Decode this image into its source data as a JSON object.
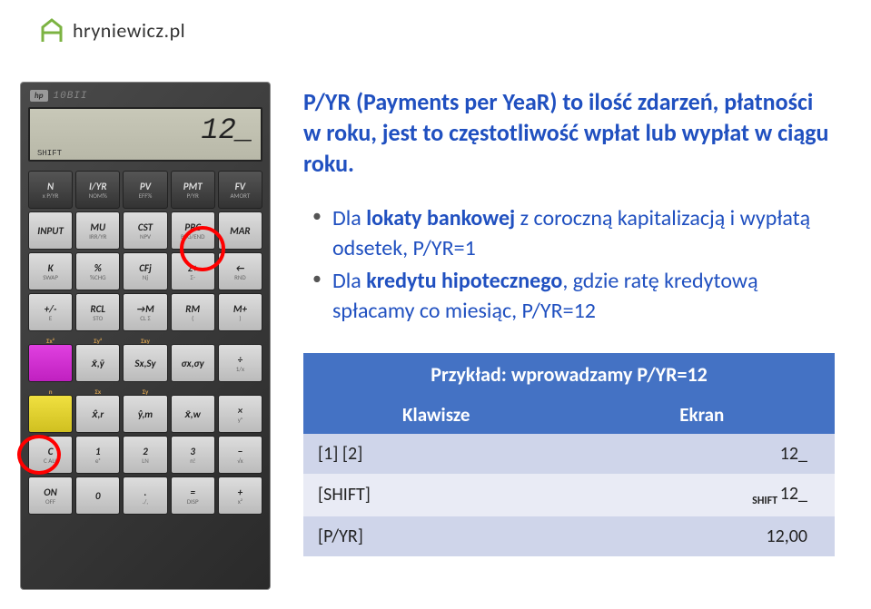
{
  "logo": {
    "text": "hryniewicz.pl",
    "icon_color": "#7cb342"
  },
  "calculator": {
    "brand_badge": "hp",
    "model": "10BII",
    "lcd_value": "12_",
    "lcd_indicator": "SHIFT",
    "rows": [
      [
        {
          "main": "N",
          "sub": "x P/YR",
          "cls": "btn-dark"
        },
        {
          "main": "I/YR",
          "sub": "NOM%",
          "cls": "btn-dark"
        },
        {
          "main": "PV",
          "sub": "EFF%",
          "cls": "btn-dark"
        },
        {
          "main": "PMT",
          "sub": "P/YR",
          "cls": "btn-dark"
        },
        {
          "main": "FV",
          "sub": "AMORT",
          "cls": "btn-dark"
        }
      ],
      [
        {
          "main": "INPUT",
          "sub": "",
          "cls": "btn-light"
        },
        {
          "main": "MU",
          "sub": "IRR/YR",
          "cls": "btn-light"
        },
        {
          "main": "CST",
          "sub": "NPV",
          "cls": "btn-light"
        },
        {
          "main": "PRC",
          "sub": "BEG/END",
          "cls": "btn-light"
        },
        {
          "main": "MAR",
          "sub": "",
          "cls": "btn-light"
        }
      ],
      [
        {
          "main": "K",
          "sub": "SWAP",
          "cls": "btn-light"
        },
        {
          "main": "%",
          "sub": "%CHG",
          "cls": "btn-light"
        },
        {
          "main": "CFj",
          "sub": "Nj",
          "cls": "btn-light"
        },
        {
          "main": "Σ+",
          "sub": "Σ-",
          "cls": "btn-light"
        },
        {
          "main": "←",
          "sub": "RND",
          "cls": "btn-light"
        }
      ],
      [
        {
          "main": "+/-",
          "sub": "E",
          "cls": "btn-light"
        },
        {
          "main": "RCL",
          "sub": "STO",
          "cls": "btn-light"
        },
        {
          "main": "→M",
          "sub": "CL Σ",
          "cls": "btn-light"
        },
        {
          "main": "RM",
          "sub": "(",
          "cls": "btn-light"
        },
        {
          "main": "M+",
          "sub": ")",
          "cls": "btn-light"
        }
      ],
      [
        {
          "main": "",
          "sub": "",
          "cls": "btn-magenta",
          "top": "Σx²"
        },
        {
          "main": "x̄,ȳ",
          "sub": "",
          "cls": "btn-light",
          "top": "Σy²"
        },
        {
          "main": "Sx,Sy",
          "sub": "",
          "cls": "btn-light",
          "top": "Σxy"
        },
        {
          "main": "σx,σy",
          "sub": "",
          "cls": "btn-light"
        },
        {
          "main": "÷",
          "sub": "1/x",
          "cls": "btn-light"
        }
      ],
      [
        {
          "main": "",
          "sub": "",
          "cls": "btn-yellow",
          "top": "n"
        },
        {
          "main": "x̂,r",
          "sub": "",
          "cls": "btn-light",
          "top": "Σx"
        },
        {
          "main": "ŷ,m",
          "sub": "",
          "cls": "btn-light",
          "top": "Σy"
        },
        {
          "main": "x̄,w",
          "sub": "",
          "cls": "btn-light"
        },
        {
          "main": "×",
          "sub": "yˣ",
          "cls": "btn-light"
        }
      ],
      [
        {
          "main": "C",
          "sub": "C ALL",
          "cls": "btn-light"
        },
        {
          "main": "1",
          "sub": "eˣ",
          "cls": "btn-light"
        },
        {
          "main": "2",
          "sub": "LN",
          "cls": "btn-light"
        },
        {
          "main": "3",
          "sub": "n!",
          "cls": "btn-light"
        },
        {
          "main": "−",
          "sub": "√x",
          "cls": "btn-light"
        }
      ],
      [
        {
          "main": "ON",
          "sub": "OFF",
          "cls": "btn-light"
        },
        {
          "main": "0",
          "sub": "",
          "cls": "btn-light"
        },
        {
          "main": ".",
          "sub": "./,",
          "cls": "btn-light"
        },
        {
          "main": "=",
          "sub": "DISP",
          "cls": "btn-light"
        },
        {
          "main": "+",
          "sub": "x²",
          "cls": "btn-light"
        }
      ]
    ]
  },
  "content": {
    "title_prefix": "P/YR",
    "title_rest": " (Payments per YeaR) to ilość zdarzeń, płatności w roku, jest to częstotliwość wpłat lub wypłat w ciągu roku.",
    "bullets": [
      {
        "bold": "lokaty bankowej",
        "pre": "Dla ",
        "post": " z coroczną kapitalizacją i wypłatą odsetek, P/YR=1"
      },
      {
        "bold": "kredytu hipotecznego",
        "pre": "Dla ",
        "post": ", gdzie ratę kredytową spłacamy co miesiąc, P/YR=12"
      }
    ]
  },
  "table": {
    "header": "Przykład: wprowadzamy P/YR=12",
    "col1": "Klawisze",
    "col2": "Ekran",
    "rows": [
      {
        "k": "[1] [2]",
        "e": "12_",
        "shift": false
      },
      {
        "k": "[SHIFT]",
        "e": "12_",
        "shift": true
      },
      {
        "k": "[P/YR]",
        "e": "12,00",
        "shift": false
      }
    ]
  }
}
